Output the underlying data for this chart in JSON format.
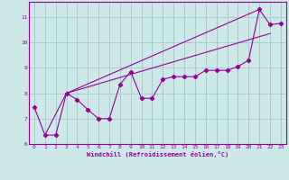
{
  "xlabel": "Windchill (Refroidissement éolien,°C)",
  "background_color": "#cce8e8",
  "grid_color": "#aacccc",
  "line_color": "#990099",
  "xlim": [
    -0.5,
    23.5
  ],
  "ylim": [
    6.0,
    11.6
  ],
  "yticks": [
    6,
    7,
    8,
    9,
    10,
    11
  ],
  "xticks": [
    0,
    1,
    2,
    3,
    4,
    5,
    6,
    7,
    8,
    9,
    10,
    11,
    12,
    13,
    14,
    15,
    16,
    17,
    18,
    19,
    20,
    21,
    22,
    23
  ],
  "line1_x": [
    0,
    1,
    2,
    3,
    4,
    5,
    6,
    7,
    8,
    9,
    10,
    11,
    12,
    13,
    14,
    15,
    16,
    17,
    18,
    19,
    20,
    21,
    22,
    23
  ],
  "line1_y": [
    7.45,
    6.35,
    6.35,
    8.0,
    7.75,
    7.35,
    7.0,
    7.0,
    8.35,
    8.85,
    7.8,
    7.8,
    8.55,
    8.65,
    8.65,
    8.65,
    8.9,
    8.9,
    8.9,
    9.05,
    9.3,
    11.3,
    10.7,
    10.75
  ],
  "line2_x": [
    1,
    3,
    22
  ],
  "line2_y": [
    6.35,
    8.0,
    10.35
  ],
  "line3_x": [
    1,
    22
  ],
  "line3_y": [
    6.35,
    10.35
  ],
  "line4_x": [
    3,
    21
  ],
  "line4_y": [
    8.0,
    11.3
  ]
}
